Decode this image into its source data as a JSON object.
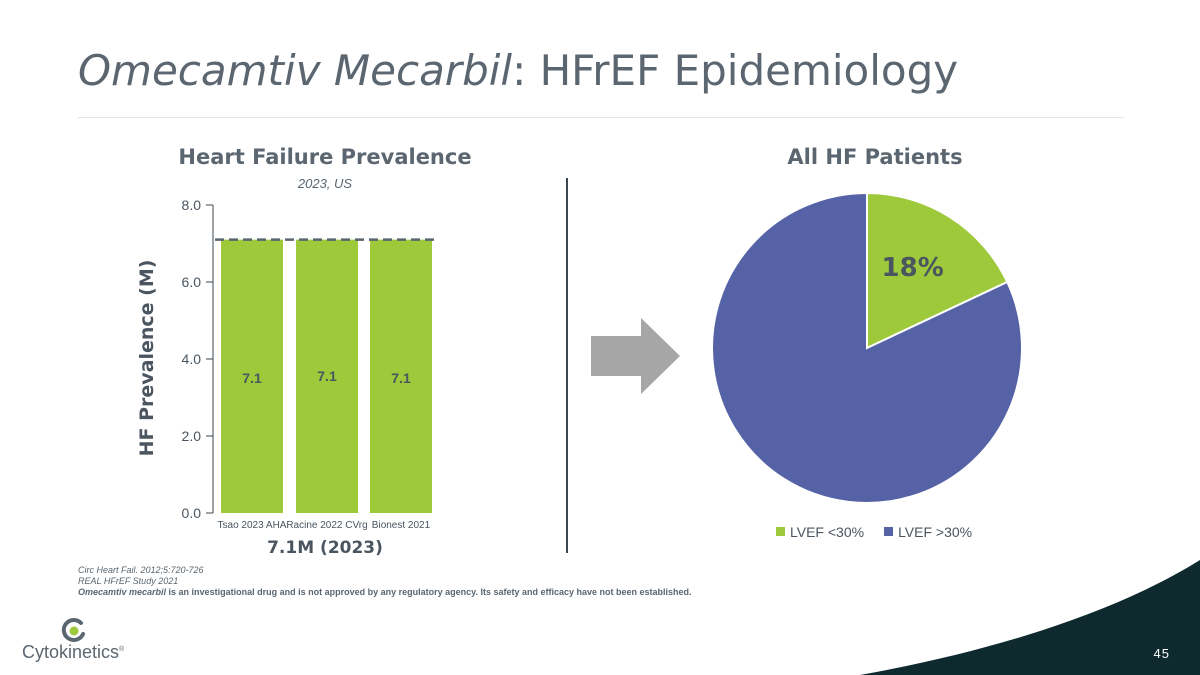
{
  "slide": {
    "title_italic": "Omecamtiv Mecarbil",
    "title_rest": ":  HFrEF Epidemiology",
    "page_number": "45"
  },
  "bar_panel": {
    "title": "Heart Failure Prevalence",
    "subtitle": "2023, US",
    "ylabel": "HF Prevalence (M)",
    "summary": "7.1M (2023)"
  },
  "pie_panel": {
    "title": "All HF Patients"
  },
  "footnotes": {
    "line1": "Circ Heart Fail. 2012;5:720-726",
    "line2": "REAL HFrEF Study 2021",
    "line3_italic": "Omecamtiv mecarbil",
    "line3_rest": " is an investigational drug and is not approved by any regulatory agency. Its safety and efficacy have not been established."
  },
  "logo": {
    "text": "Cytokinetics",
    "mark": "®"
  },
  "colors": {
    "green": "#9dc93b",
    "blue": "#5563a6",
    "arrow": "#a6a6a6",
    "dark_teal": "#0e2a2f"
  },
  "chart_data": [
    {
      "type": "bar",
      "title": "Heart Failure Prevalence",
      "subtitle": "2023, US",
      "categories": [
        "Tsao 2023 AHA",
        "Racine 2022 CVrg",
        "Bionest 2021"
      ],
      "values": [
        7.1,
        7.1,
        7.1
      ],
      "data_labels": [
        "7.1",
        "7.1",
        "7.1"
      ],
      "ylabel": "HF Prevalence (M)",
      "ylim": [
        0,
        8
      ],
      "yticks": [
        0,
        2,
        4,
        6,
        8
      ],
      "ytick_labels": [
        "0.0",
        "2.0",
        "4.0",
        "6.0",
        "8.0"
      ],
      "reference_line": 7.1,
      "grid": false
    },
    {
      "type": "pie",
      "title": "All HF Patients",
      "labels": [
        "LVEF <30%",
        "LVEF >30%"
      ],
      "values": [
        18,
        82
      ],
      "data_labels": [
        "18%",
        ""
      ],
      "legend": "bottom"
    }
  ]
}
